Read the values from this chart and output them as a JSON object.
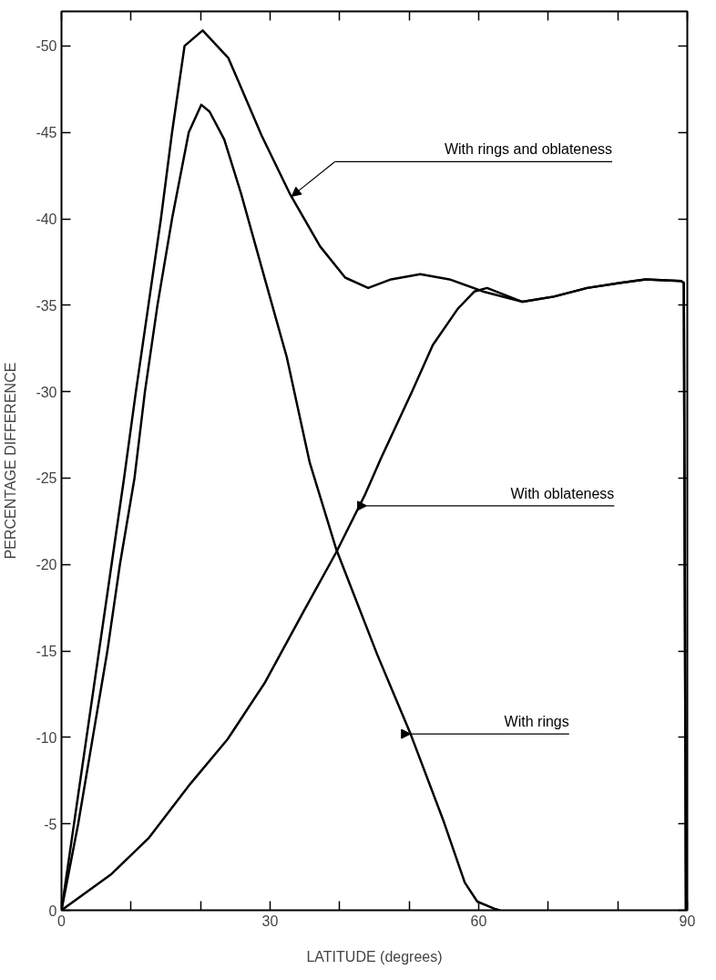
{
  "chart_data": {
    "type": "line",
    "xlabel": "LATITUDE (degrees)",
    "ylabel": "PERCENTAGE DIFFERENCE",
    "xlim": [
      0,
      90
    ],
    "ylim": [
      0,
      -52
    ],
    "xticks": [
      0,
      {
        "value": 10,
        "label": null
      },
      {
        "value": 20,
        "label": null
      },
      30,
      {
        "value": 40,
        "label": null
      },
      {
        "value": 50,
        "label": null
      },
      60,
      {
        "value": 70,
        "label": null
      },
      {
        "value": 80,
        "label": null
      },
      90
    ],
    "yticks": [
      0,
      -5,
      -10,
      -15,
      -20,
      -25,
      -30,
      -35,
      -40,
      -45,
      -50
    ],
    "grid": false,
    "marker": "none",
    "line_style": "solid",
    "series": [
      {
        "color": "#000000",
        "x": [
          0,
          1.8,
          3.6,
          5.4,
          7.2,
          9.0,
          10.7,
          12.5,
          14.3,
          15.9,
          17.7,
          20.3,
          24.0,
          25.5,
          28.8,
          32.9,
          37.2,
          40.8,
          44.1,
          47.4,
          51.6,
          55.8,
          60.6,
          66.3,
          70.8,
          75.6,
          80.4,
          84.0,
          89.1,
          89.5,
          89.8
        ],
        "values": [
          0,
          -5,
          -10,
          -15,
          -20,
          -25,
          -30,
          -35,
          -40,
          -45,
          -50,
          -50.9,
          -49.3,
          -47.9,
          -44.8,
          -41.4,
          -38.4,
          -36.6,
          -36.0,
          -36.5,
          -36.8,
          -36.5,
          -35.8,
          -35.2,
          -35.5,
          -36.0,
          -36.3,
          -36.5,
          -36.4,
          -36.3,
          0
        ]
      },
      {
        "color": "#000000",
        "x": [
          0,
          7.2,
          12.6,
          18.5,
          23.9,
          29.3,
          34.7,
          39.5,
          43.6,
          45.9,
          50.4,
          53.4,
          57.0,
          59.4,
          61.2,
          66.3,
          70.8,
          75.6,
          80.4,
          84.0,
          89.1,
          89.5,
          89.8
        ],
        "values": [
          0,
          -2.1,
          -4.2,
          -7.3,
          -9.9,
          -13.2,
          -17.2,
          -20.7,
          -24.0,
          -26.1,
          -30,
          -32.7,
          -34.8,
          -35.8,
          -36.0,
          -35.2,
          -35.5,
          -36.0,
          -36.3,
          -36.5,
          -36.4,
          -36.3,
          0
        ]
      },
      {
        "color": "#000000",
        "x": [
          0,
          2.4,
          4.5,
          6.6,
          8.4,
          10.5,
          12.0,
          13.8,
          15.9,
          18.3,
          20.1,
          21.3,
          23.4,
          25.8,
          29.4,
          32.4,
          35.7,
          39.5,
          45.4,
          50.2,
          55.0,
          58.0,
          59.8,
          62.2,
          63.0
        ],
        "values": [
          0,
          -5,
          -10,
          -15,
          -20,
          -25,
          -30,
          -35,
          -40,
          -45,
          -46.6,
          -46.2,
          -44.6,
          -41.5,
          -36.3,
          -32.0,
          -25.9,
          -20.9,
          -14.8,
          -10.2,
          -5.1,
          -1.6,
          -0.5,
          -0.1,
          0
        ]
      }
    ],
    "annotations": [
      "With rings and oblateness",
      "With oblateness",
      "With rings"
    ]
  }
}
